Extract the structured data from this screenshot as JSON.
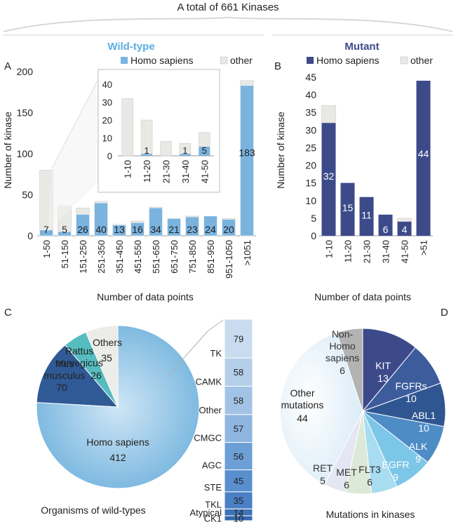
{
  "header": {
    "title": "A total of 661 Kinases",
    "wildtype_label": "Wild-type",
    "mutant_label": "Mutant"
  },
  "colors": {
    "homo": "#7ab3de",
    "other": "#e8e8e4",
    "mutant_homo": "#3d4a8a",
    "wildtype_text": "#5aaee0",
    "mutant_text": "#3d4a8a"
  },
  "chart_data": [
    {
      "id": "A",
      "panel_label": "A",
      "type": "bar",
      "stacked": true,
      "xlabel": "Number of data points",
      "ylabel": "Number of kinase",
      "ylim": [
        0,
        200
      ],
      "yticks": [
        0,
        50,
        100,
        150,
        200
      ],
      "legend": [
        "Homo sapiens",
        "other"
      ],
      "categories": [
        "1-50",
        "51-150",
        "151-250",
        "251-350",
        "351-450",
        "451-550",
        "551-650",
        "651-750",
        "751-850",
        "851-950",
        "951-1050",
        ">1051"
      ],
      "series": [
        {
          "name": "Homo sapiens",
          "values": [
            7,
            5,
            26,
            40,
            13,
            16,
            34,
            21,
            23,
            24,
            20,
            183
          ]
        },
        {
          "name": "other",
          "values": [
            73,
            31,
            8,
            2,
            1,
            2,
            1,
            0,
            1,
            0,
            1,
            6
          ]
        }
      ],
      "inset": {
        "ylim": [
          0,
          40
        ],
        "yticks": [
          0,
          10,
          20,
          30,
          40
        ],
        "categories": [
          "1-10",
          "11-20",
          "21-30",
          "31-40",
          "41-50"
        ],
        "series": [
          {
            "name": "Homo sapiens",
            "values": [
              0,
              1,
              0,
              1,
              5
            ]
          },
          {
            "name": "other",
            "values": [
              32,
              19,
              8,
              6,
              8
            ]
          }
        ],
        "labels": [
          "",
          "1",
          "",
          "1",
          "5"
        ]
      }
    },
    {
      "id": "B",
      "panel_label": "B",
      "type": "bar",
      "stacked": true,
      "xlabel": "Number of data points",
      "ylabel": "Number of kinase",
      "ylim": [
        0,
        45
      ],
      "yticks": [
        0,
        5,
        10,
        15,
        20,
        25,
        30,
        35,
        40,
        45
      ],
      "legend": [
        "Homo sapiens",
        "other"
      ],
      "categories": [
        "1-10",
        "11-20",
        "21-30",
        "31-40",
        "41-50",
        ">51"
      ],
      "series": [
        {
          "name": "Homo sapiens",
          "values": [
            32,
            15,
            11,
            6,
            4,
            44
          ]
        },
        {
          "name": "other",
          "values": [
            5,
            0,
            0,
            0,
            1,
            0
          ]
        }
      ]
    },
    {
      "id": "C",
      "panel_label": "C",
      "type": "pie",
      "caption": "Organisms of wild-types",
      "slices": [
        {
          "label": "Homo sapiens",
          "value": 412,
          "color": "#7ab8de"
        },
        {
          "label": "Mus musculus",
          "value": 70,
          "color": "#2f5a96"
        },
        {
          "label": "Rattus norvegicus",
          "value": 26,
          "color": "#55bcc0"
        },
        {
          "label": "Others",
          "value": 35,
          "color": "#ecece8"
        }
      ],
      "families": [
        {
          "label": "TK",
          "value": 79,
          "color": "#c9dcef"
        },
        {
          "label": "CAMK",
          "value": 58,
          "color": "#b5cfea"
        },
        {
          "label": "Other",
          "value": 58,
          "color": "#a3c3e6"
        },
        {
          "label": "CMGC",
          "value": 57,
          "color": "#8fb6e0"
        },
        {
          "label": "AGC",
          "value": 56,
          "color": "#6c9fd6"
        },
        {
          "label": "STE",
          "value": 45,
          "color": "#5a8fce"
        },
        {
          "label": "TKL",
          "value": 35,
          "color": "#4b80c4"
        },
        {
          "label": "Atypical",
          "value": 14,
          "color": "#3f73b8"
        },
        {
          "label": "CK1",
          "value": 10,
          "color": "#3568ad"
        }
      ]
    },
    {
      "id": "D",
      "panel_label": "D",
      "type": "pie",
      "caption": "Mutations in kinases",
      "slices": [
        {
          "label": "KIT",
          "value": 13,
          "color": "#3d4a8a"
        },
        {
          "label": "FGFRs",
          "value": 10,
          "color": "#3c5c9c"
        },
        {
          "label": "ABL1",
          "value": 10,
          "color": "#2f5690"
        },
        {
          "label": "ALK",
          "value": 9,
          "color": "#4e8cc6"
        },
        {
          "label": "EGFR",
          "value": 9,
          "color": "#7cc6e8"
        },
        {
          "label": "FLT3",
          "value": 6,
          "color": "#a8dcf0"
        },
        {
          "label": "MET",
          "value": 6,
          "color": "#dde9d8"
        },
        {
          "label": "RET",
          "value": 5,
          "color": "#e4e7f2"
        },
        {
          "label": "Other mutations",
          "value": 44,
          "color": "#e6f2fb"
        },
        {
          "label": "Non-Homo sapiens",
          "value": 6,
          "color": "#b3b3b3"
        }
      ]
    }
  ]
}
